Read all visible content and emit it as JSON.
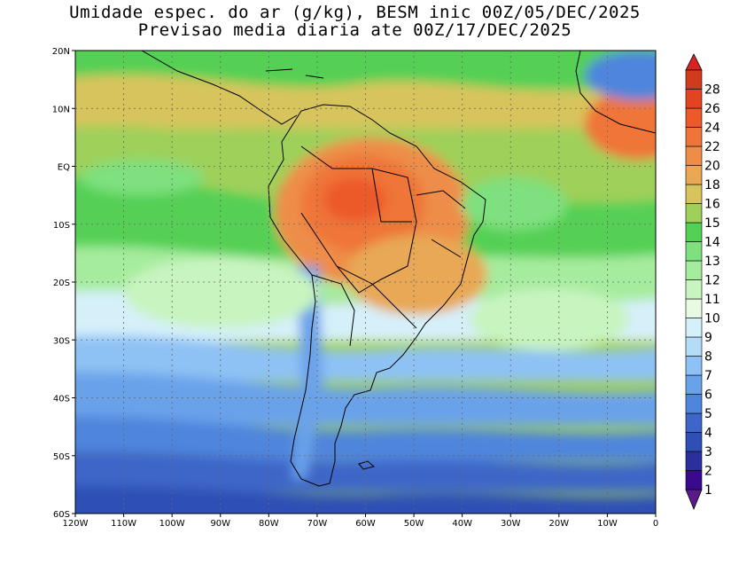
{
  "title": {
    "line1": "Umidade espec. do ar (g/kg), BESM inic 00Z/05/DEC/2025",
    "line2": "Previsao media diaria ate 00Z/17/DEC/2025"
  },
  "map": {
    "lat_labels": [
      "20N",
      "10N",
      "EQ",
      "10S",
      "20S",
      "30S",
      "40S",
      "50S",
      "60S"
    ],
    "lon_labels": [
      "120W",
      "110W",
      "100W",
      "90W",
      "80W",
      "70W",
      "60W",
      "50W",
      "40W",
      "30W",
      "20W",
      "10W",
      "0"
    ],
    "lat_range": [
      -60,
      20
    ],
    "lon_range": [
      -120,
      0
    ]
  },
  "colorbar": {
    "levels": [
      "1",
      "2",
      "3",
      "4",
      "5",
      "6",
      "7",
      "8",
      "9",
      "10",
      "11",
      "12",
      "13",
      "14",
      "15",
      "16",
      "18",
      "20",
      "22",
      "24",
      "26",
      "28"
    ],
    "colors": [
      "#3a0a8c",
      "#2b2f9e",
      "#2e4fb5",
      "#3d66c8",
      "#4f85dc",
      "#6aa2ea",
      "#8ec2f4",
      "#b4dcf8",
      "#d6f0fa",
      "#e8fbe2",
      "#c8f4c0",
      "#a6ec9e",
      "#7ee07e",
      "#54d055",
      "#9fd05a",
      "#d8c45c",
      "#e8a854",
      "#ee8d48",
      "#ef7438",
      "#ec5a2c",
      "#e24422",
      "#d23a1e"
    ],
    "end_colors": {
      "top": "#d92323",
      "bottom": "#5b1a8a"
    }
  }
}
